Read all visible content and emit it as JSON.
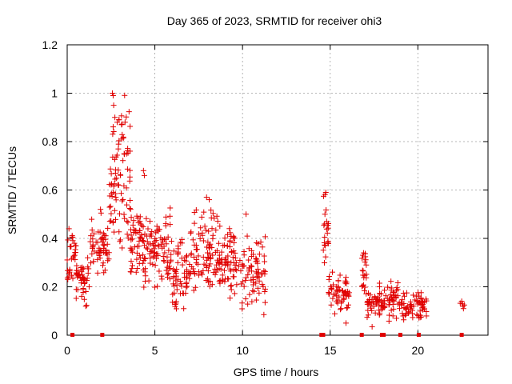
{
  "chart_data": {
    "type": "scatter",
    "title": "Day 365 of 2023, SRMTID for receiver ohi3",
    "xlabel": "GPS time / hours",
    "ylabel": "SRMTID / TECUs",
    "xlim": [
      0,
      24
    ],
    "ylim": [
      0,
      1.2
    ],
    "xticks": [
      0,
      5,
      10,
      15,
      20
    ],
    "yticks": [
      0,
      0.2,
      0.4,
      0.6,
      0.8,
      1.0,
      1.2
    ],
    "xtick_labels": [
      "0",
      "5",
      "10",
      "15",
      "20"
    ],
    "ytick_labels": [
      "0",
      "0.2",
      "0.4",
      "0.6",
      "0.8",
      "1",
      "1.2"
    ],
    "grid": true,
    "marker": "+",
    "color": "#e00000",
    "segments": [
      {
        "x_start": 0.0,
        "x_end": 0.5,
        "base": 0.33,
        "spread": 0.09,
        "count": 30
      },
      {
        "x_start": 0.5,
        "x_end": 1.3,
        "base": 0.24,
        "spread": 0.07,
        "count": 45
      },
      {
        "x_start": 1.3,
        "x_end": 2.4,
        "base": 0.36,
        "spread": 0.1,
        "count": 60
      },
      {
        "x_start": 2.4,
        "x_end": 2.6,
        "base": 0.6,
        "spread": 0.18,
        "count": 15
      },
      {
        "x_start": 2.6,
        "x_end": 3.6,
        "base": 0.66,
        "spread": 0.22,
        "count": 70
      },
      {
        "x_start": 3.6,
        "x_end": 4.8,
        "base": 0.36,
        "spread": 0.12,
        "count": 80
      },
      {
        "x_start": 4.8,
        "x_end": 6.0,
        "base": 0.35,
        "spread": 0.1,
        "count": 70
      },
      {
        "x_start": 6.0,
        "x_end": 7.0,
        "base": 0.25,
        "spread": 0.1,
        "count": 60
      },
      {
        "x_start": 7.0,
        "x_end": 8.6,
        "base": 0.34,
        "spread": 0.12,
        "count": 90
      },
      {
        "x_start": 8.6,
        "x_end": 10.0,
        "base": 0.3,
        "spread": 0.11,
        "count": 80
      },
      {
        "x_start": 10.0,
        "x_end": 11.3,
        "base": 0.26,
        "spread": 0.1,
        "count": 70
      },
      {
        "x_start": 14.6,
        "x_end": 14.9,
        "base": 0.44,
        "spread": 0.12,
        "count": 20
      },
      {
        "x_start": 14.9,
        "x_end": 16.1,
        "base": 0.17,
        "spread": 0.06,
        "count": 60
      },
      {
        "x_start": 16.8,
        "x_end": 17.1,
        "base": 0.26,
        "spread": 0.06,
        "count": 20
      },
      {
        "x_start": 17.1,
        "x_end": 18.0,
        "base": 0.13,
        "spread": 0.05,
        "count": 50
      },
      {
        "x_start": 18.0,
        "x_end": 19.3,
        "base": 0.14,
        "spread": 0.05,
        "count": 60
      },
      {
        "x_start": 19.3,
        "x_end": 20.5,
        "base": 0.12,
        "spread": 0.04,
        "count": 55
      },
      {
        "x_start": 22.4,
        "x_end": 22.7,
        "base": 0.12,
        "spread": 0.02,
        "count": 4
      }
    ],
    "highlights": [
      {
        "x": 2.58,
        "y": 1.0
      },
      {
        "x": 2.62,
        "y": 0.99
      },
      {
        "x": 2.65,
        "y": 0.95
      },
      {
        "x": 2.72,
        "y": 0.9
      },
      {
        "x": 2.85,
        "y": 0.88
      },
      {
        "x": 2.95,
        "y": 0.89
      },
      {
        "x": 3.1,
        "y": 0.87
      },
      {
        "x": 3.3,
        "y": 0.88
      },
      {
        "x": 4.35,
        "y": 0.68
      },
      {
        "x": 4.4,
        "y": 0.66
      },
      {
        "x": 14.75,
        "y": 0.59
      },
      {
        "x": 14.7,
        "y": 0.5
      },
      {
        "x": 14.8,
        "y": 0.47
      },
      {
        "x": 0.1,
        "y": 0.44
      },
      {
        "x": 1.9,
        "y": 0.52
      },
      {
        "x": 7.95,
        "y": 0.57
      },
      {
        "x": 8.1,
        "y": 0.56
      },
      {
        "x": 10.2,
        "y": 0.5
      },
      {
        "x": 16.9,
        "y": 0.34
      },
      {
        "x": 15.9,
        "y": 0.05
      },
      {
        "x": 22.5,
        "y": 0.14
      },
      {
        "x": 22.6,
        "y": 0.11
      }
    ],
    "outage_markers_x": [
      0.3,
      2.0,
      14.5,
      14.6,
      16.8,
      17.95,
      18.05,
      19.0,
      20.05,
      22.5
    ]
  }
}
